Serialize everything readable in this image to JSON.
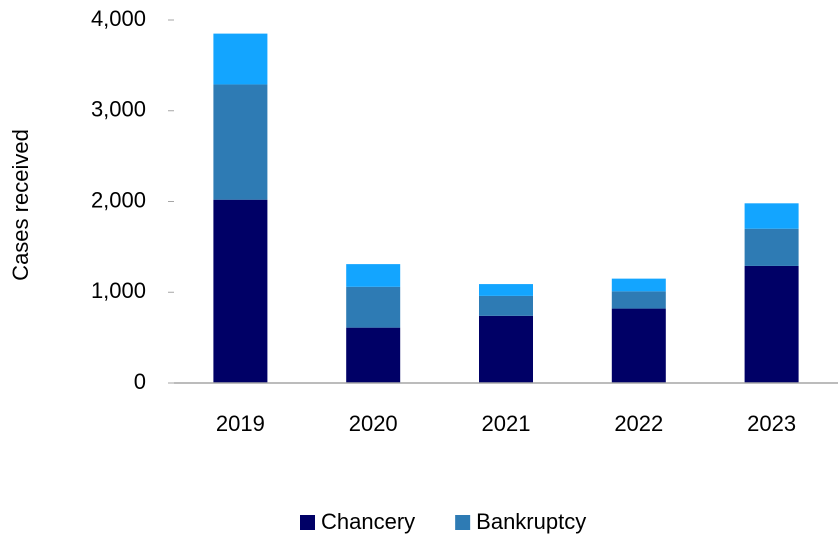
{
  "chart_data": {
    "type": "stacked_bar",
    "y_label": "Cases received",
    "categories": [
      "2019",
      "2020",
      "2021",
      "2022",
      "2023"
    ],
    "series": [
      {
        "name": "Chancery",
        "color": "#000066",
        "values": [
          2020,
          610,
          740,
          820,
          1290
        ]
      },
      {
        "name": "Bankruptcy",
        "color": "#2e7bb4",
        "values": [
          1270,
          450,
          220,
          190,
          410
        ]
      },
      {
        "color": "#13a5ff",
        "values": [
          560,
          250,
          130,
          140,
          280
        ]
      }
    ],
    "ylim": [
      0,
      4000
    ],
    "yticks": [
      0,
      {
        "value": 1000,
        "label": "1,000"
      },
      {
        "value": 2000,
        "label": "2,000"
      },
      {
        "value": 3000,
        "label": "3,000"
      },
      {
        "value": 4000,
        "label": "4,000"
      }
    ],
    "grid": false,
    "legend": "bottom"
  }
}
